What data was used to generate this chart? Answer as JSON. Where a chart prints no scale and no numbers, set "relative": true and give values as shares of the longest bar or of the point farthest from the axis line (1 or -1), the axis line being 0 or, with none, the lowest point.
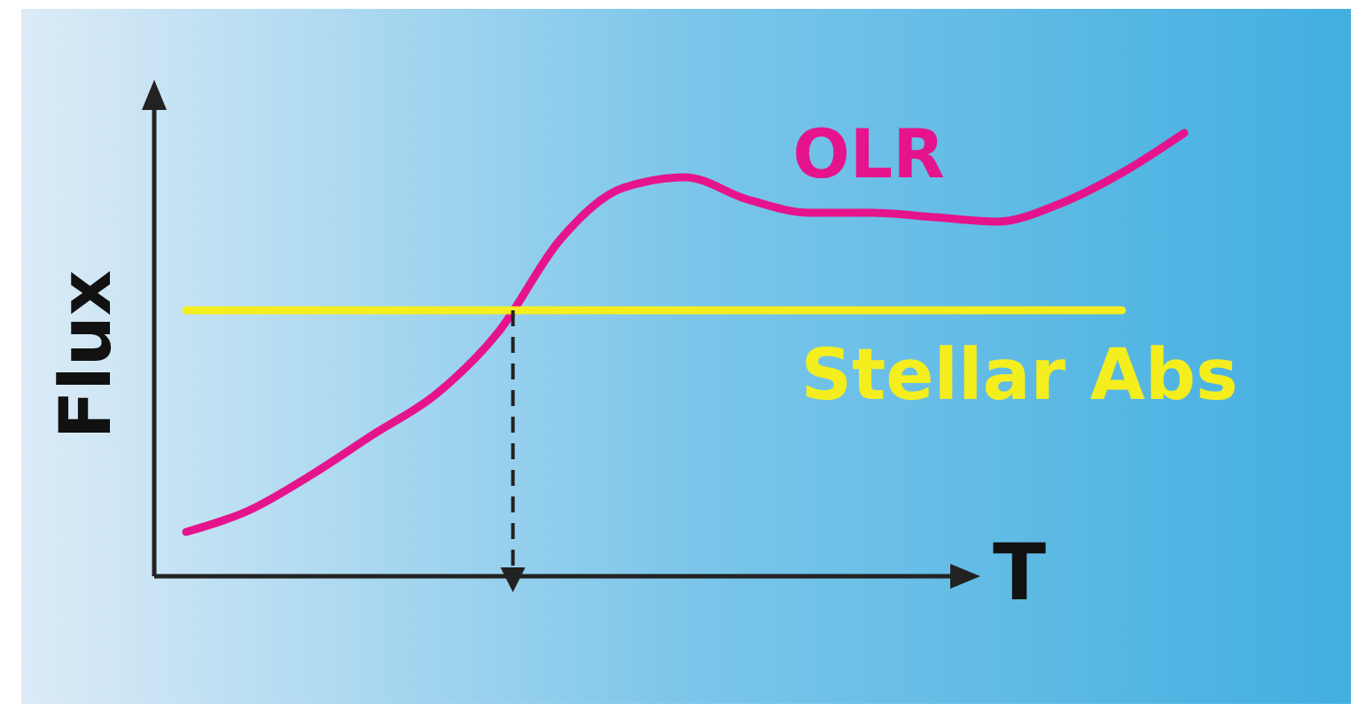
{
  "chart_data": {
    "type": "line",
    "relative": true,
    "xlabel": "T",
    "ylabel": "Flux",
    "categories": [
      null,
      null,
      null,
      null,
      null,
      null,
      null,
      null,
      null,
      null,
      null,
      null,
      null,
      null,
      null,
      null,
      null
    ],
    "series": [
      {
        "name": "OLR",
        "color": "#e6148c",
        "values": [
          0.1,
          0.148,
          0.228,
          0.32,
          0.41,
          0.55,
          0.76,
          0.876,
          0.9,
          0.85,
          0.82,
          0.82,
          0.81,
          0.8,
          0.84,
          0.91,
          1.0
        ]
      },
      {
        "name": "Stellar Abs",
        "color": "#f4ee1e",
        "values": [
          0.6,
          0.6,
          0.6,
          0.6,
          0.6,
          0.6,
          0.6,
          0.6,
          0.6,
          0.6,
          0.6,
          0.6,
          0.6,
          0.6,
          0.6,
          0.6,
          null
        ]
      }
    ]
  }
}
